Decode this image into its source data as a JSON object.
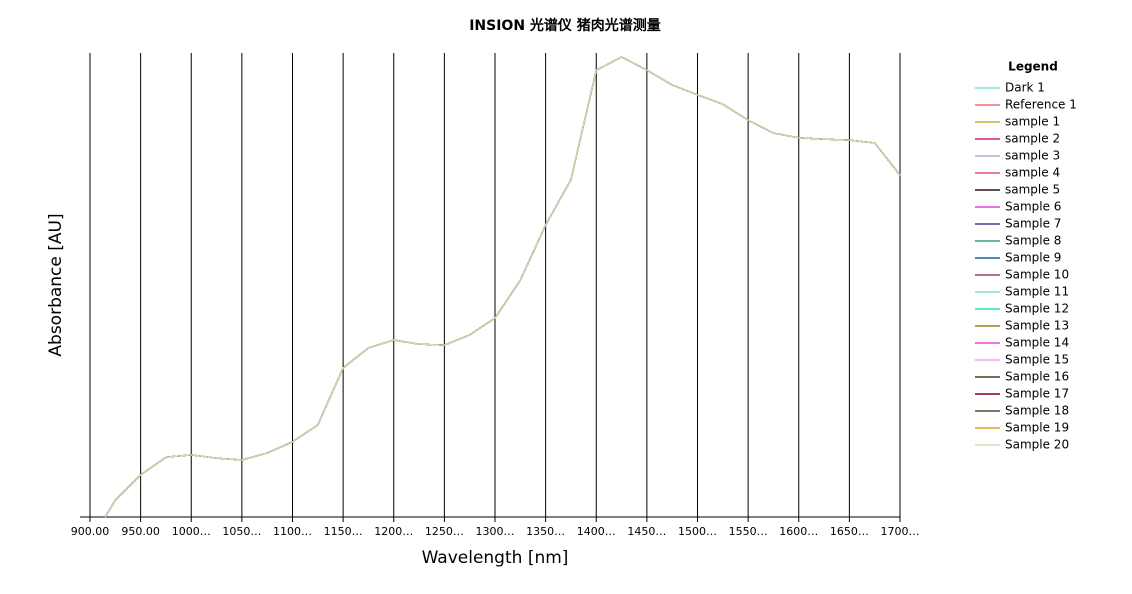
{
  "chart_data": {
    "type": "line",
    "title": "INSION 光谱仪 猪肉光谱测量",
    "xlabel": "Wavelength [nm]",
    "ylabel": "Absorbance [AU]",
    "legend_title": "Legend",
    "xlim": [
      900,
      1700
    ],
    "ylim": [
      0,
      1
    ],
    "xticks": [
      {
        "value": 900,
        "label": "900.00"
      },
      {
        "value": 950,
        "label": "950.00"
      },
      {
        "value": 1000,
        "label": "1000…"
      },
      {
        "value": 1050,
        "label": "1050…"
      },
      {
        "value": 1100,
        "label": "1100…"
      },
      {
        "value": 1150,
        "label": "1150…"
      },
      {
        "value": 1200,
        "label": "1200…"
      },
      {
        "value": 1250,
        "label": "1250…"
      },
      {
        "value": 1300,
        "label": "1300…"
      },
      {
        "value": 1350,
        "label": "1350…"
      },
      {
        "value": 1400,
        "label": "1400…"
      },
      {
        "value": 1450,
        "label": "1450…"
      },
      {
        "value": 1500,
        "label": "1500…"
      },
      {
        "value": 1550,
        "label": "1550…"
      },
      {
        "value": 1600,
        "label": "1600…"
      },
      {
        "value": 1650,
        "label": "1650…"
      },
      {
        "value": 1700,
        "label": "1700…"
      }
    ],
    "x_grid": true,
    "legend_position": "right",
    "x": [
      915,
      925,
      950,
      975,
      1000,
      1025,
      1050,
      1075,
      1100,
      1125,
      1150,
      1175,
      1200,
      1225,
      1250,
      1275,
      1300,
      1325,
      1350,
      1375,
      1400,
      1425,
      1450,
      1475,
      1500,
      1525,
      1550,
      1575,
      1600,
      1625,
      1650,
      1675,
      1700
    ],
    "series": [
      {
        "name": "Dark 1",
        "color": "#7fdfd6",
        "values": [
          0.0,
          0.036,
          0.09,
          0.128,
          0.133,
          0.126,
          0.122,
          0.137,
          0.161,
          0.197,
          0.319,
          0.362,
          0.379,
          0.37,
          0.368,
          0.39,
          0.426,
          0.507,
          0.625,
          0.722,
          0.957,
          0.985,
          0.957,
          0.925,
          0.904,
          0.884,
          0.85,
          0.822,
          0.812,
          0.809,
          0.807,
          0.801,
          0.732
        ]
      },
      {
        "name": "Reference 1",
        "color": "#f07070",
        "values": [
          0.0,
          0.036,
          0.09,
          0.128,
          0.133,
          0.126,
          0.122,
          0.137,
          0.161,
          0.197,
          0.319,
          0.362,
          0.379,
          0.37,
          0.368,
          0.39,
          0.426,
          0.507,
          0.625,
          0.722,
          0.957,
          0.985,
          0.957,
          0.925,
          0.904,
          0.884,
          0.85,
          0.822,
          0.812,
          0.809,
          0.807,
          0.801,
          0.732
        ]
      },
      {
        "name": "sample 1",
        "color": "#c8b040",
        "values": [
          0.0,
          0.036,
          0.09,
          0.128,
          0.133,
          0.126,
          0.122,
          0.137,
          0.161,
          0.197,
          0.319,
          0.362,
          0.379,
          0.37,
          0.368,
          0.39,
          0.426,
          0.507,
          0.625,
          0.722,
          0.957,
          0.985,
          0.957,
          0.925,
          0.904,
          0.884,
          0.85,
          0.822,
          0.812,
          0.809,
          0.807,
          0.801,
          0.732
        ]
      },
      {
        "name": "sample 2",
        "color": "#d0207a",
        "values": [
          0.0,
          0.036,
          0.09,
          0.128,
          0.133,
          0.126,
          0.122,
          0.137,
          0.161,
          0.197,
          0.319,
          0.362,
          0.379,
          0.37,
          0.368,
          0.39,
          0.426,
          0.507,
          0.625,
          0.722,
          0.957,
          0.985,
          0.957,
          0.925,
          0.904,
          0.884,
          0.85,
          0.822,
          0.812,
          0.809,
          0.807,
          0.801,
          0.732
        ]
      },
      {
        "name": "sample 3",
        "color": "#b0b0c8",
        "values": [
          0.0,
          0.036,
          0.09,
          0.128,
          0.133,
          0.126,
          0.122,
          0.137,
          0.161,
          0.197,
          0.319,
          0.362,
          0.379,
          0.37,
          0.368,
          0.39,
          0.426,
          0.507,
          0.625,
          0.722,
          0.957,
          0.985,
          0.957,
          0.925,
          0.904,
          0.884,
          0.85,
          0.822,
          0.812,
          0.809,
          0.807,
          0.801,
          0.732
        ]
      },
      {
        "name": "sample 4",
        "color": "#e05080",
        "values": [
          0.0,
          0.036,
          0.09,
          0.128,
          0.133,
          0.126,
          0.122,
          0.137,
          0.161,
          0.197,
          0.319,
          0.362,
          0.379,
          0.37,
          0.368,
          0.39,
          0.426,
          0.507,
          0.625,
          0.722,
          0.957,
          0.985,
          0.957,
          0.925,
          0.904,
          0.884,
          0.85,
          0.822,
          0.812,
          0.809,
          0.807,
          0.801,
          0.732
        ]
      },
      {
        "name": "sample 5",
        "color": "#301020",
        "values": [
          0.0,
          0.036,
          0.09,
          0.128,
          0.133,
          0.126,
          0.122,
          0.137,
          0.161,
          0.197,
          0.319,
          0.362,
          0.379,
          0.37,
          0.368,
          0.39,
          0.426,
          0.507,
          0.625,
          0.722,
          0.957,
          0.985,
          0.957,
          0.925,
          0.904,
          0.884,
          0.85,
          0.822,
          0.812,
          0.809,
          0.807,
          0.801,
          0.732
        ]
      },
      {
        "name": "Sample 6",
        "color": "#e040e0",
        "values": [
          0.0,
          0.036,
          0.09,
          0.128,
          0.133,
          0.126,
          0.122,
          0.137,
          0.161,
          0.197,
          0.319,
          0.362,
          0.379,
          0.37,
          0.368,
          0.39,
          0.426,
          0.507,
          0.625,
          0.722,
          0.957,
          0.985,
          0.957,
          0.925,
          0.904,
          0.884,
          0.85,
          0.822,
          0.812,
          0.809,
          0.807,
          0.801,
          0.732
        ]
      },
      {
        "name": "Sample 7",
        "color": "#503090",
        "values": [
          0.0,
          0.036,
          0.09,
          0.128,
          0.133,
          0.126,
          0.122,
          0.137,
          0.161,
          0.197,
          0.319,
          0.362,
          0.379,
          0.37,
          0.368,
          0.39,
          0.426,
          0.507,
          0.625,
          0.722,
          0.957,
          0.985,
          0.957,
          0.925,
          0.904,
          0.884,
          0.85,
          0.822,
          0.812,
          0.809,
          0.807,
          0.801,
          0.732
        ]
      },
      {
        "name": "Sample 8",
        "color": "#30a070",
        "values": [
          0.0,
          0.036,
          0.09,
          0.128,
          0.133,
          0.126,
          0.122,
          0.137,
          0.161,
          0.197,
          0.319,
          0.362,
          0.379,
          0.37,
          0.368,
          0.39,
          0.426,
          0.507,
          0.625,
          0.722,
          0.957,
          0.985,
          0.957,
          0.925,
          0.904,
          0.884,
          0.85,
          0.822,
          0.812,
          0.809,
          0.807,
          0.801,
          0.732
        ]
      },
      {
        "name": "Sample 9",
        "color": "#2060a0",
        "values": [
          0.0,
          0.036,
          0.09,
          0.128,
          0.133,
          0.126,
          0.122,
          0.137,
          0.161,
          0.197,
          0.319,
          0.362,
          0.379,
          0.37,
          0.368,
          0.39,
          0.426,
          0.507,
          0.625,
          0.722,
          0.957,
          0.985,
          0.957,
          0.925,
          0.904,
          0.884,
          0.85,
          0.822,
          0.812,
          0.809,
          0.807,
          0.801,
          0.732
        ]
      },
      {
        "name": "Sample 10",
        "color": "#a04050",
        "values": [
          0.0,
          0.036,
          0.09,
          0.128,
          0.133,
          0.126,
          0.122,
          0.137,
          0.161,
          0.197,
          0.319,
          0.362,
          0.379,
          0.37,
          0.368,
          0.39,
          0.426,
          0.507,
          0.625,
          0.722,
          0.957,
          0.985,
          0.957,
          0.925,
          0.904,
          0.884,
          0.85,
          0.822,
          0.812,
          0.809,
          0.807,
          0.801,
          0.732
        ]
      },
      {
        "name": "Sample 11",
        "color": "#80e0d0",
        "values": [
          0.0,
          0.036,
          0.09,
          0.128,
          0.133,
          0.126,
          0.122,
          0.137,
          0.161,
          0.197,
          0.319,
          0.362,
          0.379,
          0.37,
          0.368,
          0.39,
          0.426,
          0.507,
          0.625,
          0.722,
          0.957,
          0.985,
          0.957,
          0.925,
          0.904,
          0.884,
          0.85,
          0.822,
          0.812,
          0.809,
          0.807,
          0.801,
          0.732
        ]
      },
      {
        "name": "Sample 12",
        "color": "#30e0b0",
        "values": [
          0.0,
          0.036,
          0.09,
          0.128,
          0.133,
          0.126,
          0.122,
          0.137,
          0.161,
          0.197,
          0.319,
          0.362,
          0.379,
          0.37,
          0.368,
          0.39,
          0.426,
          0.507,
          0.625,
          0.722,
          0.957,
          0.985,
          0.957,
          0.925,
          0.904,
          0.884,
          0.85,
          0.822,
          0.812,
          0.809,
          0.807,
          0.801,
          0.732
        ]
      },
      {
        "name": "Sample 13",
        "color": "#a08020",
        "values": [
          0.0,
          0.036,
          0.09,
          0.128,
          0.133,
          0.126,
          0.122,
          0.137,
          0.161,
          0.197,
          0.319,
          0.362,
          0.379,
          0.37,
          0.368,
          0.39,
          0.426,
          0.507,
          0.625,
          0.722,
          0.957,
          0.985,
          0.957,
          0.925,
          0.904,
          0.884,
          0.85,
          0.822,
          0.812,
          0.809,
          0.807,
          0.801,
          0.732
        ]
      },
      {
        "name": "Sample 14",
        "color": "#f040d0",
        "values": [
          0.0,
          0.036,
          0.09,
          0.128,
          0.133,
          0.126,
          0.122,
          0.137,
          0.161,
          0.197,
          0.319,
          0.362,
          0.379,
          0.37,
          0.368,
          0.39,
          0.426,
          0.507,
          0.625,
          0.722,
          0.957,
          0.985,
          0.957,
          0.925,
          0.904,
          0.884,
          0.85,
          0.822,
          0.812,
          0.809,
          0.807,
          0.801,
          0.732
        ]
      },
      {
        "name": "Sample 15",
        "color": "#f0a0f0",
        "values": [
          0.0,
          0.036,
          0.09,
          0.128,
          0.133,
          0.126,
          0.122,
          0.137,
          0.161,
          0.197,
          0.319,
          0.362,
          0.379,
          0.37,
          0.368,
          0.39,
          0.426,
          0.507,
          0.625,
          0.722,
          0.957,
          0.985,
          0.957,
          0.925,
          0.904,
          0.884,
          0.85,
          0.822,
          0.812,
          0.809,
          0.807,
          0.801,
          0.732
        ]
      },
      {
        "name": "Sample 16",
        "color": "#404020",
        "values": [
          0.0,
          0.036,
          0.09,
          0.128,
          0.133,
          0.126,
          0.122,
          0.137,
          0.161,
          0.197,
          0.319,
          0.362,
          0.379,
          0.37,
          0.368,
          0.39,
          0.426,
          0.507,
          0.625,
          0.722,
          0.957,
          0.985,
          0.957,
          0.925,
          0.904,
          0.884,
          0.85,
          0.822,
          0.812,
          0.809,
          0.807,
          0.801,
          0.732
        ]
      },
      {
        "name": "Sample 17",
        "color": "#800020",
        "values": [
          0.0,
          0.036,
          0.09,
          0.128,
          0.133,
          0.126,
          0.122,
          0.137,
          0.161,
          0.197,
          0.319,
          0.362,
          0.379,
          0.37,
          0.368,
          0.39,
          0.426,
          0.507,
          0.625,
          0.722,
          0.957,
          0.985,
          0.957,
          0.925,
          0.904,
          0.884,
          0.85,
          0.822,
          0.812,
          0.809,
          0.807,
          0.801,
          0.732
        ]
      },
      {
        "name": "Sample 18",
        "color": "#405030",
        "values": [
          0.0,
          0.036,
          0.09,
          0.128,
          0.133,
          0.126,
          0.122,
          0.137,
          0.161,
          0.197,
          0.319,
          0.362,
          0.379,
          0.37,
          0.368,
          0.39,
          0.426,
          0.507,
          0.625,
          0.722,
          0.957,
          0.985,
          0.957,
          0.925,
          0.904,
          0.884,
          0.85,
          0.822,
          0.812,
          0.809,
          0.807,
          0.801,
          0.732
        ]
      },
      {
        "name": "Sample 19",
        "color": "#e0a020",
        "values": [
          0.0,
          0.036,
          0.09,
          0.128,
          0.133,
          0.126,
          0.122,
          0.137,
          0.161,
          0.197,
          0.319,
          0.362,
          0.379,
          0.37,
          0.368,
          0.39,
          0.426,
          0.507,
          0.625,
          0.722,
          0.957,
          0.985,
          0.957,
          0.925,
          0.904,
          0.884,
          0.85,
          0.822,
          0.812,
          0.809,
          0.807,
          0.801,
          0.732
        ]
      },
      {
        "name": "Sample 20",
        "color": "#d0e0c0",
        "values": [
          0.0,
          0.036,
          0.09,
          0.128,
          0.133,
          0.126,
          0.122,
          0.137,
          0.161,
          0.197,
          0.319,
          0.362,
          0.379,
          0.37,
          0.368,
          0.39,
          0.426,
          0.507,
          0.625,
          0.722,
          0.957,
          0.985,
          0.957,
          0.925,
          0.904,
          0.884,
          0.85,
          0.822,
          0.812,
          0.809,
          0.807,
          0.801,
          0.732
        ]
      }
    ]
  }
}
